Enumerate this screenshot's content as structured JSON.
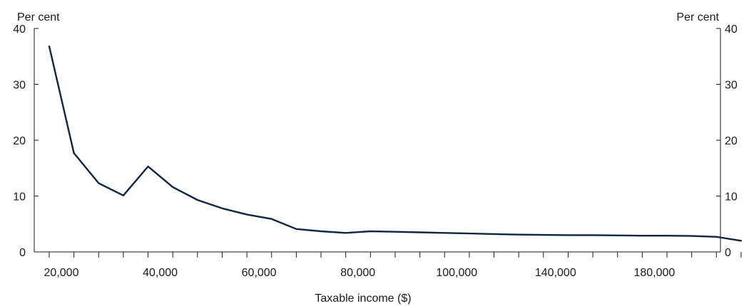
{
  "chart_data": {
    "type": "line",
    "y_unit_left": "Per cent",
    "y_unit_right": "Per cent",
    "xlabel": "Taxable income ($)",
    "ylim": [
      0,
      40
    ],
    "y_ticks": [
      "0",
      "10",
      "20",
      "30",
      "40"
    ],
    "x_tick_labels": [
      "20,000",
      "40,000",
      "60,000",
      "80,000",
      "100,000",
      "140,000",
      "180,000"
    ],
    "grid": false,
    "line_color": "#0f2540",
    "series": [
      {
        "values": [
          36.8,
          17.7,
          12.3,
          10.1,
          15.3,
          11.6,
          9.3,
          7.8,
          6.7,
          5.9,
          4.1,
          3.7,
          3.4,
          3.7,
          3.6,
          3.5,
          3.4,
          3.3,
          3.2,
          3.1,
          3.05,
          3.0,
          3.0,
          2.95,
          2.9,
          2.9,
          2.85,
          2.7,
          2.0
        ]
      }
    ]
  }
}
